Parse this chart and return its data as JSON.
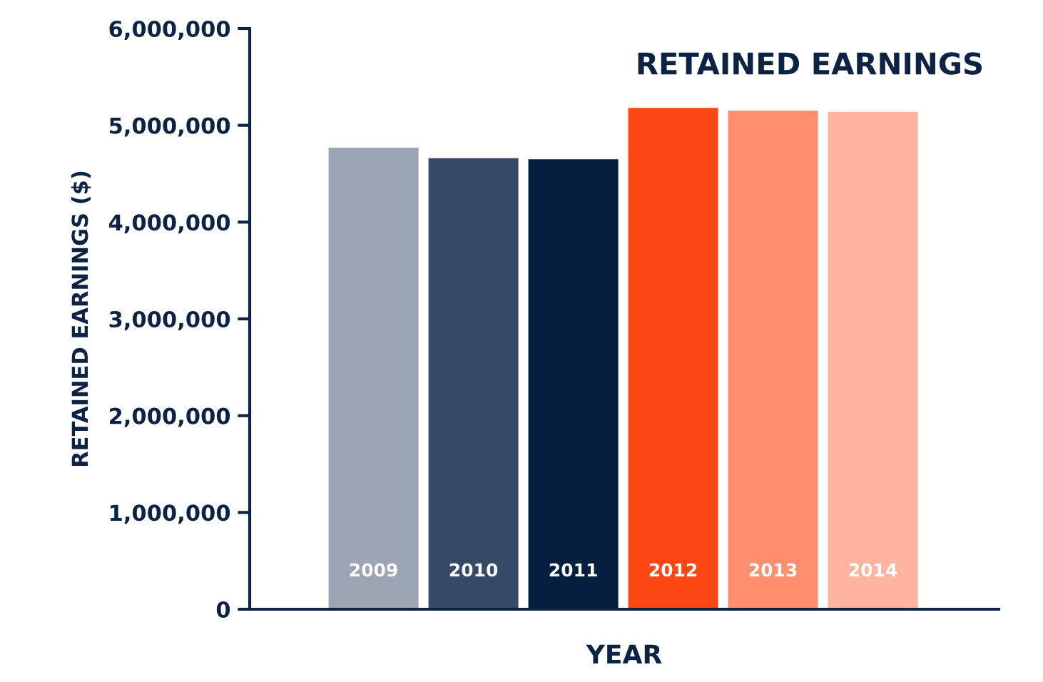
{
  "chart_data": {
    "type": "bar",
    "title": "RETAINED EARNINGS",
    "xlabel": "YEAR",
    "ylabel": "RETAINED EARNINGS ($)",
    "categories": [
      "2009",
      "2010",
      "2011",
      "2012",
      "2013",
      "2014"
    ],
    "values": [
      4780000,
      4670000,
      4660000,
      5190000,
      5160000,
      5150000
    ],
    "colors": [
      "#9ba5b4",
      "#354a66",
      "#061f41",
      "#fc4614",
      "#fd8f6f",
      "#feb49f"
    ],
    "ylim": [
      0,
      6000000
    ],
    "yticks": [
      {
        "value": 0,
        "label": "0"
      },
      {
        "value": 1000000,
        "label": "1,000,000"
      },
      {
        "value": 2000000,
        "label": "2,000,000"
      },
      {
        "value": 3000000,
        "label": "3,000,000"
      },
      {
        "value": 4000000,
        "label": "4,000,000"
      },
      {
        "value": 5000000,
        "label": "5,000,000"
      },
      {
        "value": 6000000,
        "label": "6,000,000"
      }
    ],
    "grid": false,
    "legend": false
  }
}
